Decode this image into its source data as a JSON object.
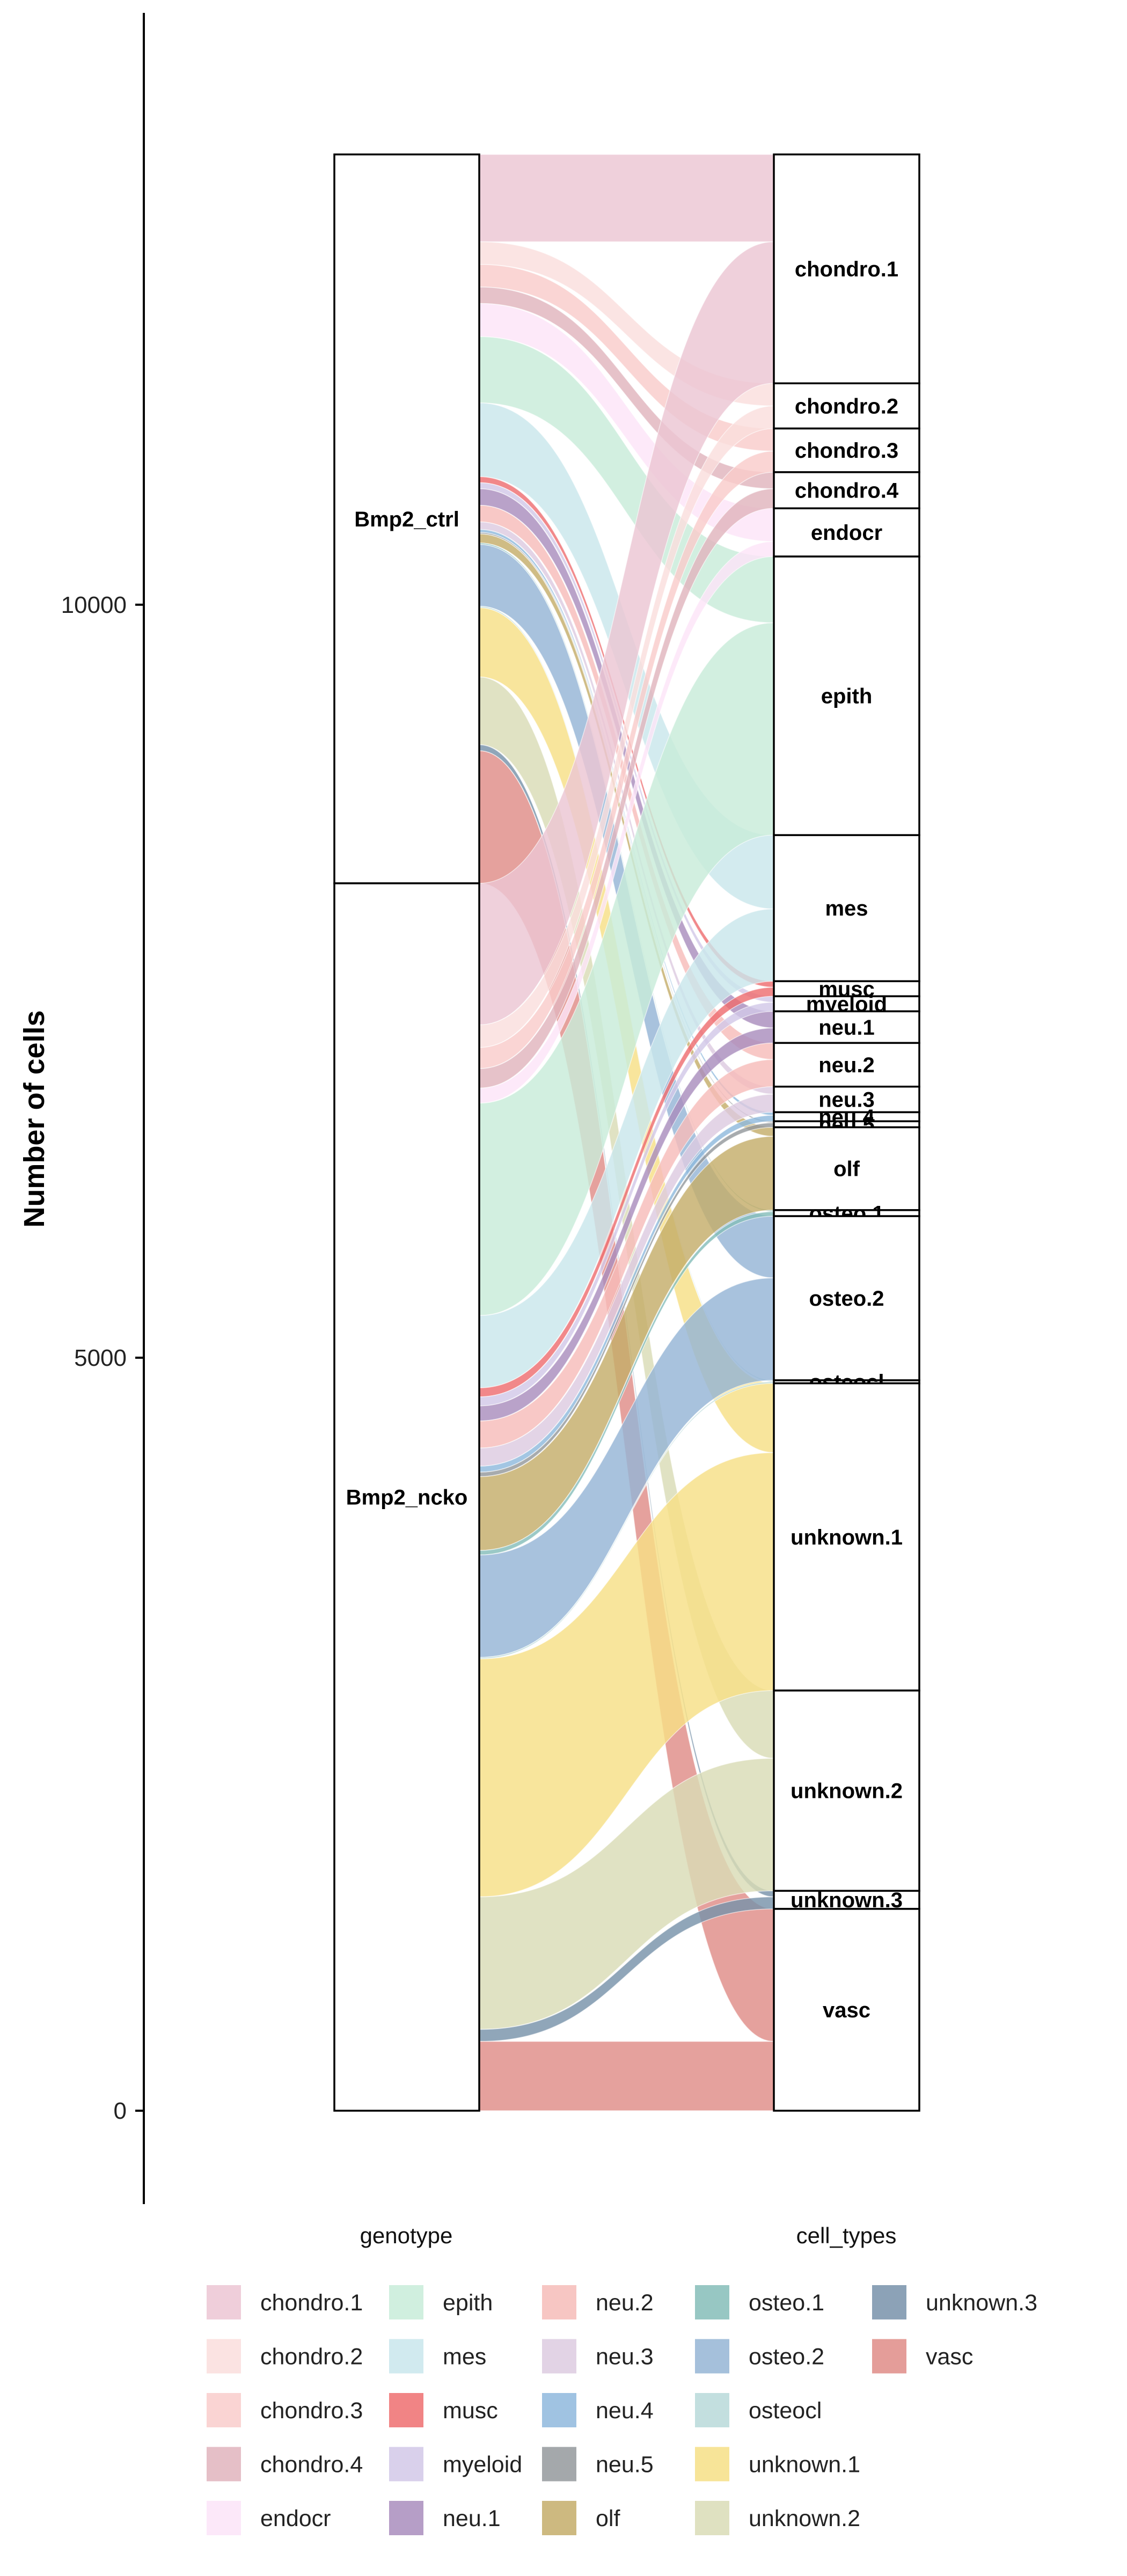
{
  "chart_data": {
    "type": "alluvial",
    "ylabel": "Number of cells",
    "ylim": [
      -620,
      13930
    ],
    "yticks": [
      0,
      5000,
      10000
    ],
    "axes": [
      "genotype",
      "cell_types"
    ],
    "genotypes": [
      "Bmp2_ctrl",
      "Bmp2_ncko"
    ],
    "cell_types": [
      "chondro.1",
      "chondro.2",
      "chondro.3",
      "chondro.4",
      "endocr",
      "epith",
      "mes",
      "musc",
      "myeloid",
      "neu.1",
      "neu.2",
      "neu.3",
      "neu.4",
      "neu.5",
      "olf",
      "osteo.1",
      "osteo.2",
      "osteocl",
      "unknown.1",
      "unknown.2",
      "unknown.3",
      "vasc"
    ],
    "colors": {
      "chondro.1": "#ecc6d3",
      "chondro.2": "#fadedd",
      "chondro.3": "#f9cccb",
      "chondro.4": "#e0b4bd",
      "endocr": "#fce4f8",
      "epith": "#c8ecd9",
      "mes": "#c9e6ec",
      "musc": "#ee6e70",
      "myeloid": "#d2c8e8",
      "neu.1": "#a98dbd",
      "neu.2": "#f6bcb9",
      "neu.3": "#ddcbe0",
      "neu.4": "#8fb9dd",
      "neu.5": "#94999c",
      "olf": "#c4ad6a",
      "osteo.1": "#85bdb9",
      "osteo.2": "#95b5d5",
      "osteocl": "#b8d9d9",
      "unknown.1": "#f6df86",
      "unknown.2": "#d9dcb6",
      "unknown.3": "#7892aa",
      "vasc": "#df8c87"
    },
    "flows": {
      "Bmp2_ctrl": [
        580,
        150,
        150,
        110,
        220,
        440,
        490,
        40,
        40,
        110,
        110,
        50,
        20,
        10,
        60,
        10,
        410,
        10,
        460,
        450,
        40,
        880
      ],
      "Bmp2_ncko": [
        940,
        150,
        140,
        130,
        100,
        1410,
        480,
        60,
        60,
        100,
        180,
        120,
        40,
        30,
        490,
        30,
        680,
        10,
        1580,
        880,
        80,
        460
      ]
    },
    "legend": {
      "columns": [
        [
          "chondro.1",
          "chondro.2",
          "chondro.3",
          "chondro.4",
          "endocr"
        ],
        [
          "epith",
          "mes",
          "musc",
          "myeloid",
          "neu.1"
        ],
        [
          "neu.2",
          "neu.3",
          "neu.4",
          "neu.5",
          "olf"
        ],
        [
          "osteo.1",
          "osteo.2",
          "osteocl",
          "unknown.1",
          "unknown.2"
        ],
        [
          "unknown.3",
          "vasc"
        ]
      ]
    }
  }
}
